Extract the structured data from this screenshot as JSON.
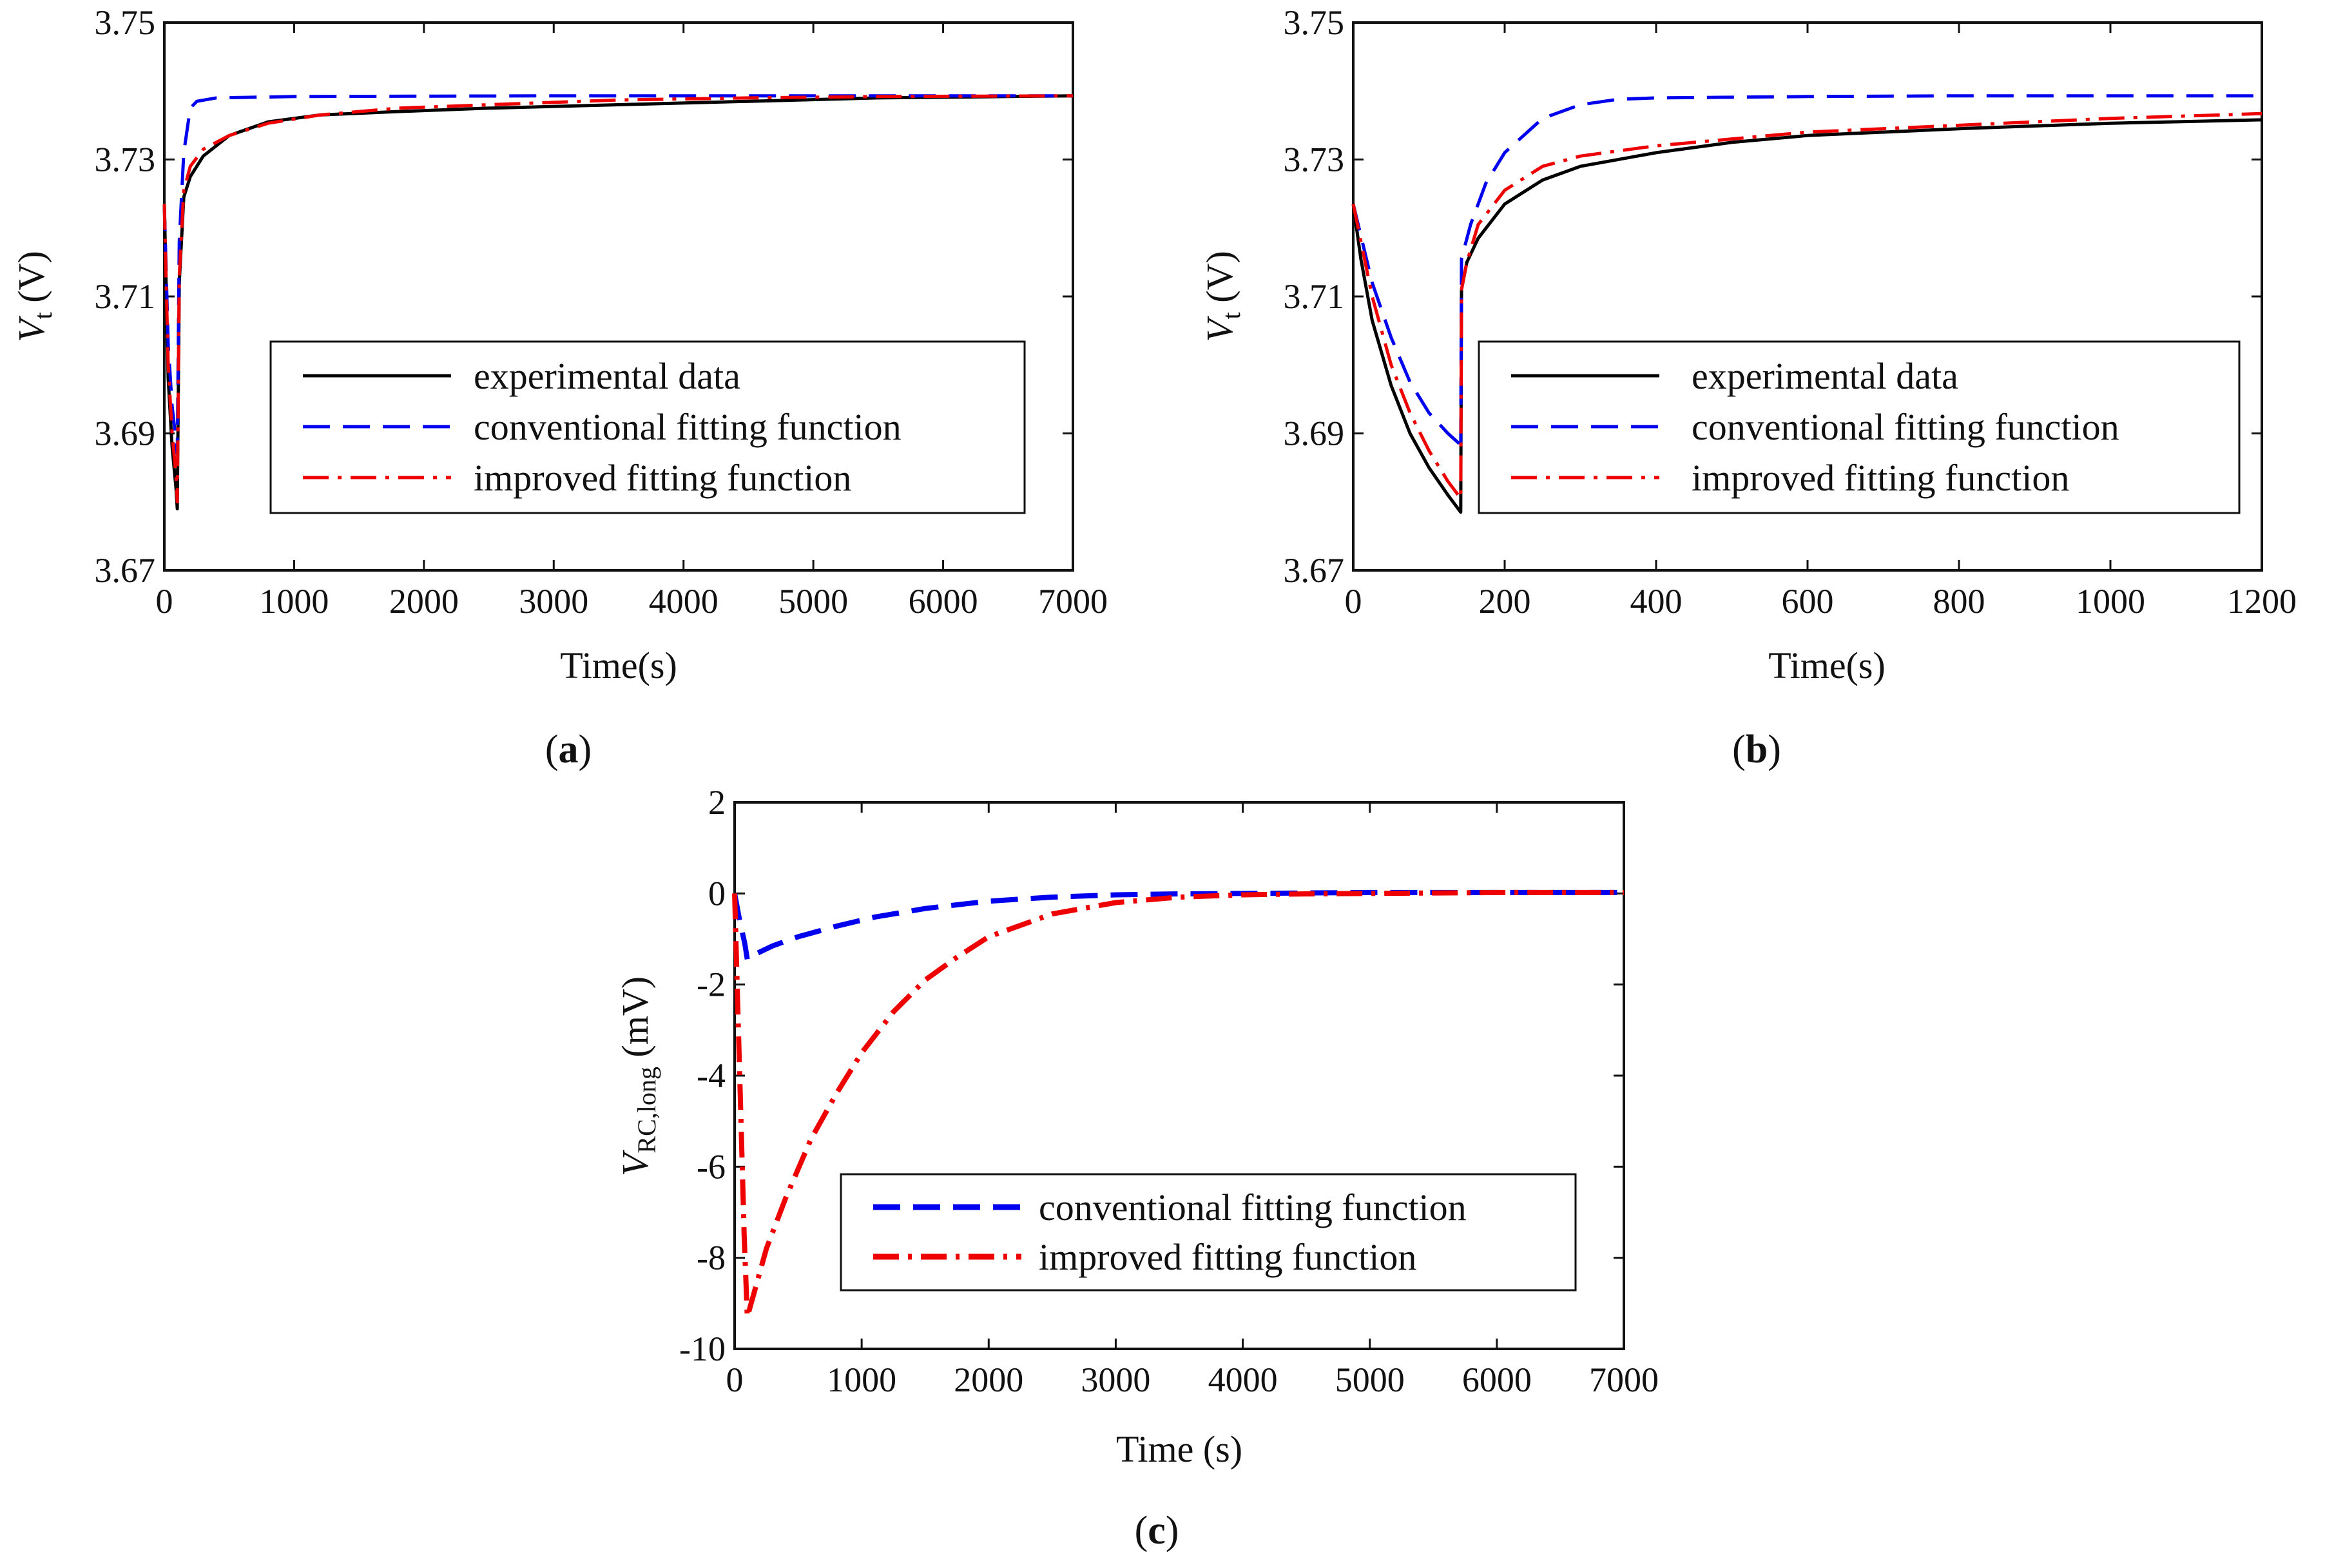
{
  "chart_data": [
    {
      "id": "a",
      "type": "line",
      "caption": "a",
      "xlabel": "Time(s)",
      "ylabel_main": "V",
      "ylabel_sub": "t",
      "ylabel_tail": " (V)",
      "xlim": [
        0,
        7000
      ],
      "ylim": [
        3.67,
        3.75
      ],
      "xticks": [
        "0",
        "1000",
        "2000",
        "3000",
        "4000",
        "5000",
        "6000",
        "7000"
      ],
      "yticks": [
        "3.67",
        "3.69",
        "3.71",
        "3.73",
        "3.75"
      ],
      "legend": [
        "experimental data",
        "conventional fitting function",
        "improved fitting function"
      ],
      "series": [
        {
          "name": "experimental data",
          "color": "#000000",
          "style": "solid",
          "x": [
            0,
            30,
            60,
            90,
            100,
            115,
            150,
            200,
            300,
            500,
            800,
            1200,
            1800,
            2500,
            3500,
            4500,
            5500,
            6500,
            7000
          ],
          "y": [
            3.7235,
            3.698,
            3.688,
            3.682,
            3.679,
            3.712,
            3.7245,
            3.7275,
            3.7305,
            3.7335,
            3.7355,
            3.7365,
            3.737,
            3.7375,
            3.738,
            3.7385,
            3.739,
            3.7392,
            3.7393
          ]
        },
        {
          "name": "conventional fitting function",
          "color": "#0000ee",
          "style": "dashed",
          "x": [
            0,
            30,
            60,
            90,
            100,
            115,
            150,
            200,
            250,
            400,
            1000,
            3000,
            7000
          ],
          "y": [
            3.7235,
            3.703,
            3.694,
            3.689,
            3.687,
            3.718,
            3.731,
            3.7375,
            3.7385,
            3.739,
            3.7392,
            3.7393,
            3.7393
          ]
        },
        {
          "name": "improved fitting function",
          "color": "#ee0000",
          "style": "dashdot",
          "x": [
            0,
            30,
            60,
            90,
            100,
            115,
            150,
            200,
            300,
            500,
            800,
            1200,
            1800,
            2500,
            3500,
            4500,
            5500,
            7000
          ],
          "y": [
            3.7235,
            3.7,
            3.69,
            3.684,
            3.68,
            3.713,
            3.7255,
            3.729,
            3.7315,
            3.7335,
            3.7353,
            3.7365,
            3.7375,
            3.738,
            3.7387,
            3.739,
            3.7392,
            3.7393
          ]
        }
      ]
    },
    {
      "id": "b",
      "type": "line",
      "caption": "b",
      "xlabel": "Time(s)",
      "ylabel_main": "V",
      "ylabel_sub": "t",
      "ylabel_tail": " (V)",
      "xlim": [
        0,
        1200
      ],
      "ylim": [
        3.67,
        3.75
      ],
      "xticks": [
        "0",
        "200",
        "400",
        "600",
        "800",
        "1000",
        "1200"
      ],
      "yticks": [
        "3.67",
        "3.69",
        "3.71",
        "3.73",
        "3.75"
      ],
      "legend": [
        "experimental data",
        "conventional fitting function",
        "improved fitting function"
      ],
      "series": [
        {
          "name": "experimental data",
          "color": "#000000",
          "style": "solid",
          "x": [
            0,
            10,
            25,
            50,
            75,
            100,
            125,
            142,
            143,
            150,
            165,
            200,
            250,
            300,
            400,
            500,
            600,
            800,
            1000,
            1200
          ],
          "y": [
            3.7235,
            3.7155,
            3.7065,
            3.697,
            3.69,
            3.685,
            3.681,
            3.6785,
            3.711,
            3.715,
            3.7185,
            3.7235,
            3.727,
            3.729,
            3.731,
            3.7325,
            3.7335,
            3.7345,
            3.7353,
            3.7358
          ]
        },
        {
          "name": "conventional fitting function",
          "color": "#0000ee",
          "style": "dashed",
          "x": [
            0,
            25,
            50,
            75,
            100,
            125,
            140,
            142,
            143,
            155,
            175,
            200,
            250,
            300,
            350,
            400,
            600,
            800,
            1000,
            1200
          ],
          "y": [
            3.7235,
            3.712,
            3.704,
            3.6975,
            3.693,
            3.69,
            3.6885,
            3.6875,
            3.7155,
            3.7205,
            3.7265,
            3.731,
            3.736,
            3.738,
            3.7388,
            3.739,
            3.7392,
            3.7393,
            3.7393,
            3.7393
          ]
        },
        {
          "name": "improved fitting function",
          "color": "#ee0000",
          "style": "dashdot",
          "x": [
            0,
            25,
            50,
            75,
            100,
            125,
            142,
            143,
            150,
            165,
            200,
            250,
            300,
            400,
            500,
            600,
            800,
            1000,
            1200
          ],
          "y": [
            3.7235,
            3.71,
            3.7,
            3.693,
            3.6875,
            3.683,
            3.6805,
            3.711,
            3.715,
            3.7205,
            3.7255,
            3.729,
            3.7305,
            3.732,
            3.733,
            3.734,
            3.735,
            3.736,
            3.7367
          ]
        }
      ]
    },
    {
      "id": "c",
      "type": "line",
      "caption": "c",
      "xlabel": "Time (s)",
      "ylabel_main": "V",
      "ylabel_sub": "RC,long",
      "ylabel_tail": " (mV)",
      "xlim": [
        0,
        7000
      ],
      "ylim": [
        -10,
        2
      ],
      "xticks": [
        "0",
        "1000",
        "2000",
        "3000",
        "4000",
        "5000",
        "6000",
        "7000"
      ],
      "yticks": [
        "-10",
        "-8",
        "-6",
        "-4",
        "-2",
        "0",
        "2"
      ],
      "legend": [
        "conventional fitting function",
        "improved fitting function"
      ],
      "series": [
        {
          "name": "conventional fitting function",
          "color": "#0000ee",
          "style": "dashed",
          "x": [
            0,
            40,
            80,
            100,
            150,
            300,
            500,
            800,
            1100,
            1500,
            2000,
            2500,
            3000,
            3500,
            4000,
            5000,
            6000,
            7000
          ],
          "y": [
            0,
            -0.6,
            -1.1,
            -1.45,
            -1.35,
            -1.15,
            -0.95,
            -0.72,
            -0.52,
            -0.33,
            -0.17,
            -0.08,
            -0.03,
            -0.01,
            0,
            0.02,
            0.02,
            0.02
          ]
        },
        {
          "name": "improved fitting function",
          "color": "#ee0000",
          "style": "dashdot",
          "x": [
            0,
            25,
            50,
            75,
            100,
            150,
            250,
            400,
            600,
            800,
            1000,
            1250,
            1500,
            1750,
            2000,
            2500,
            3000,
            3500,
            4000,
            4500,
            5000,
            6000,
            7000
          ],
          "y": [
            0,
            -2.5,
            -5.0,
            -7.5,
            -9.3,
            -8.8,
            -7.8,
            -6.7,
            -5.4,
            -4.4,
            -3.5,
            -2.6,
            -1.9,
            -1.4,
            -0.95,
            -0.45,
            -0.2,
            -0.08,
            -0.03,
            -0.01,
            0,
            0.02,
            0.02
          ]
        }
      ]
    }
  ]
}
